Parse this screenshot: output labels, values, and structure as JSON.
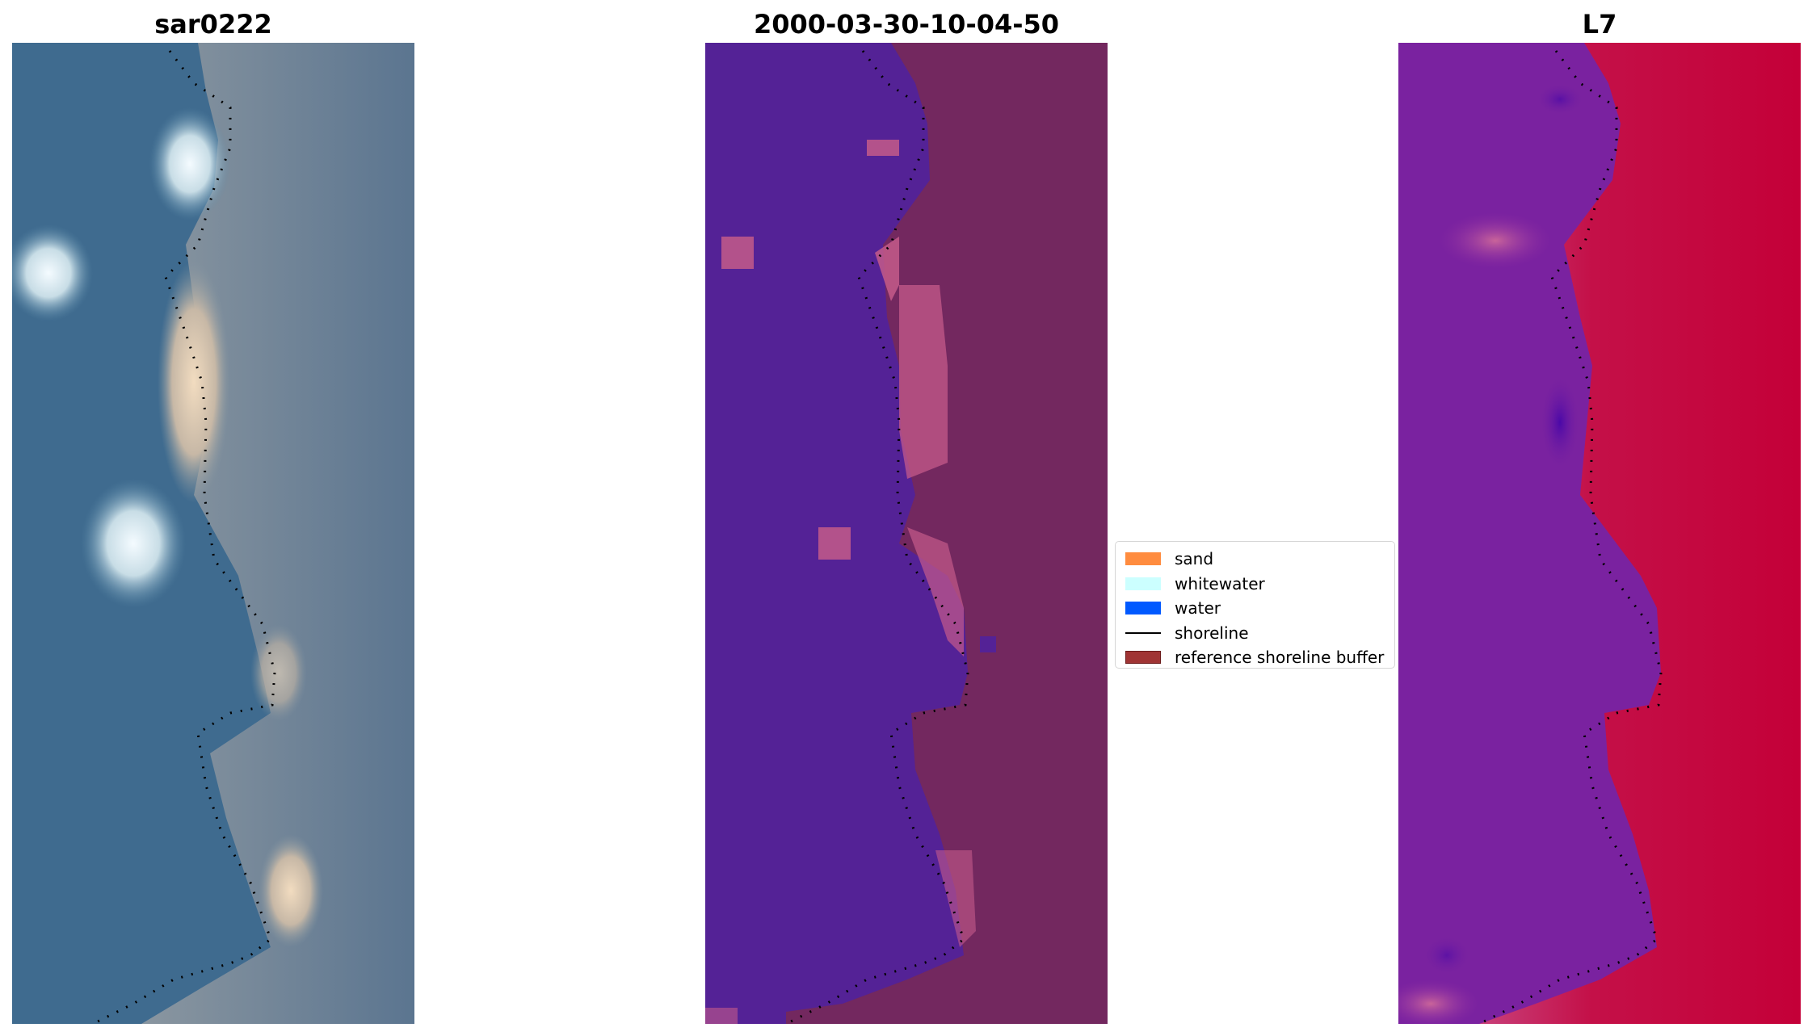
{
  "panels": [
    {
      "title": "sar0222"
    },
    {
      "title": "2000-03-30-10-04-50"
    },
    {
      "title": "L7"
    }
  ],
  "legend": {
    "items": [
      {
        "label": "sand",
        "color": "#ff8c3f",
        "kind": "patch"
      },
      {
        "label": "whitewater",
        "color": "#ccffff",
        "kind": "patch"
      },
      {
        "label": "water",
        "color": "#0059ff",
        "kind": "patch"
      },
      {
        "label": "shoreline",
        "color": "#000000",
        "kind": "line"
      },
      {
        "label": "reference shoreline buffer",
        "color": "#a03434",
        "kind": "patch"
      }
    ]
  },
  "colors": {
    "rgb_water": "#3f6b8f",
    "rgb_land": "#6c7f90",
    "class_water": "#542296",
    "class_land": "#73285f",
    "class_sand": "#c45a8a",
    "mndwi_water": "#7a22a0",
    "mndwi_land": "#c2103f"
  }
}
